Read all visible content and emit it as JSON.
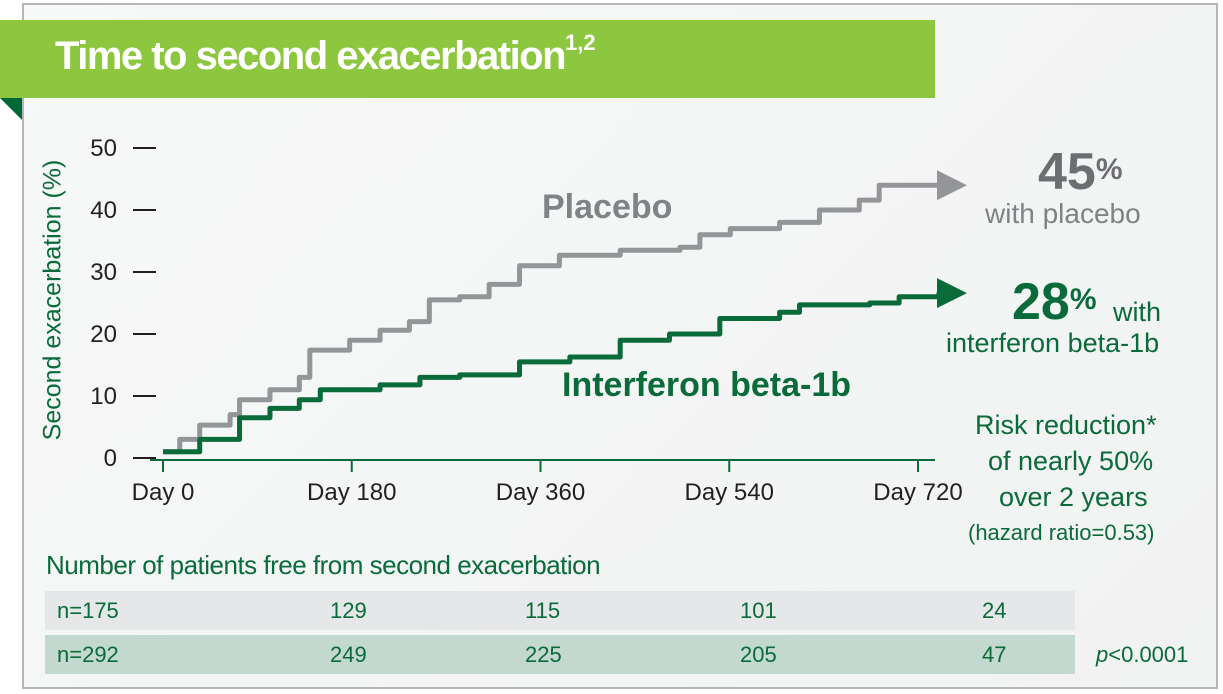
{
  "title": "Time to second exacerbation",
  "title_refs": "1,2",
  "colors": {
    "banner": "#8dc63f",
    "placebo": "#939598",
    "interferon": "#0a6b3a",
    "text_green": "#0a6b3a",
    "text_gray": "#808285",
    "row_placebo": "#e6e7e8",
    "row_interferon": "#c3d9cf"
  },
  "callouts": {
    "placebo_pct": "45",
    "placebo_pct_sign": "%",
    "placebo_text": "with placebo",
    "ifn_pct": "28",
    "ifn_pct_sign": "%",
    "ifn_text_1": "with",
    "ifn_text_2": "interferon beta-1b",
    "risk_1": "Risk reduction*",
    "risk_2": "of nearly 50%",
    "risk_3": "over 2 years",
    "risk_4": "(hazard ratio=0.53)"
  },
  "table": {
    "title": "Number of patients free from second exacerbation",
    "rows": [
      {
        "cells": [
          "n=175",
          "129",
          "115",
          "101",
          "24"
        ]
      },
      {
        "cells": [
          "n=292",
          "249",
          "225",
          "205",
          "47"
        ]
      }
    ],
    "p_italic": "p",
    "p_value": "<0.0001"
  },
  "chart_data": {
    "type": "line",
    "title": "Time to second exacerbation",
    "xlabel": "",
    "ylabel": "Second exacerbation (%)",
    "ylim": [
      0,
      50
    ],
    "xlim": [
      0,
      720
    ],
    "yticks": [
      0,
      10,
      20,
      30,
      40,
      50
    ],
    "xticks": [
      0,
      180,
      360,
      540,
      720
    ],
    "xtick_labels": [
      "Day 0",
      "Day 180",
      "Day 360",
      "Day 540",
      "Day 720"
    ],
    "grid": false,
    "series": [
      {
        "name": "Placebo",
        "color": "#939598",
        "step": true,
        "x": [
          0,
          16,
          35,
          64,
          73,
          102,
          130,
          140,
          178,
          207,
          235,
          254,
          283,
          311,
          340,
          378,
          436,
          493,
          512,
          541,
          588,
          626,
          664,
          683,
          740
        ],
        "y": [
          1,
          3,
          5.3,
          7,
          9.4,
          11,
          13,
          17.4,
          19,
          20.6,
          22,
          25.5,
          26,
          28,
          31,
          32.7,
          33.5,
          34,
          36,
          37,
          38,
          40,
          41.6,
          44,
          44
        ]
      },
      {
        "name": "Interferon beta-1b",
        "color": "#0a6b3a",
        "step": true,
        "x": [
          0,
          35,
          73,
          102,
          130,
          150,
          207,
          245,
          283,
          340,
          388,
          436,
          483,
          531,
          588,
          607,
          674,
          702,
          740
        ],
        "y": [
          1,
          3,
          6.5,
          8,
          9.4,
          11,
          11.8,
          13,
          13.4,
          15.5,
          16.3,
          19,
          20,
          22.5,
          23.5,
          24.7,
          25,
          26,
          26.6
        ]
      }
    ]
  }
}
